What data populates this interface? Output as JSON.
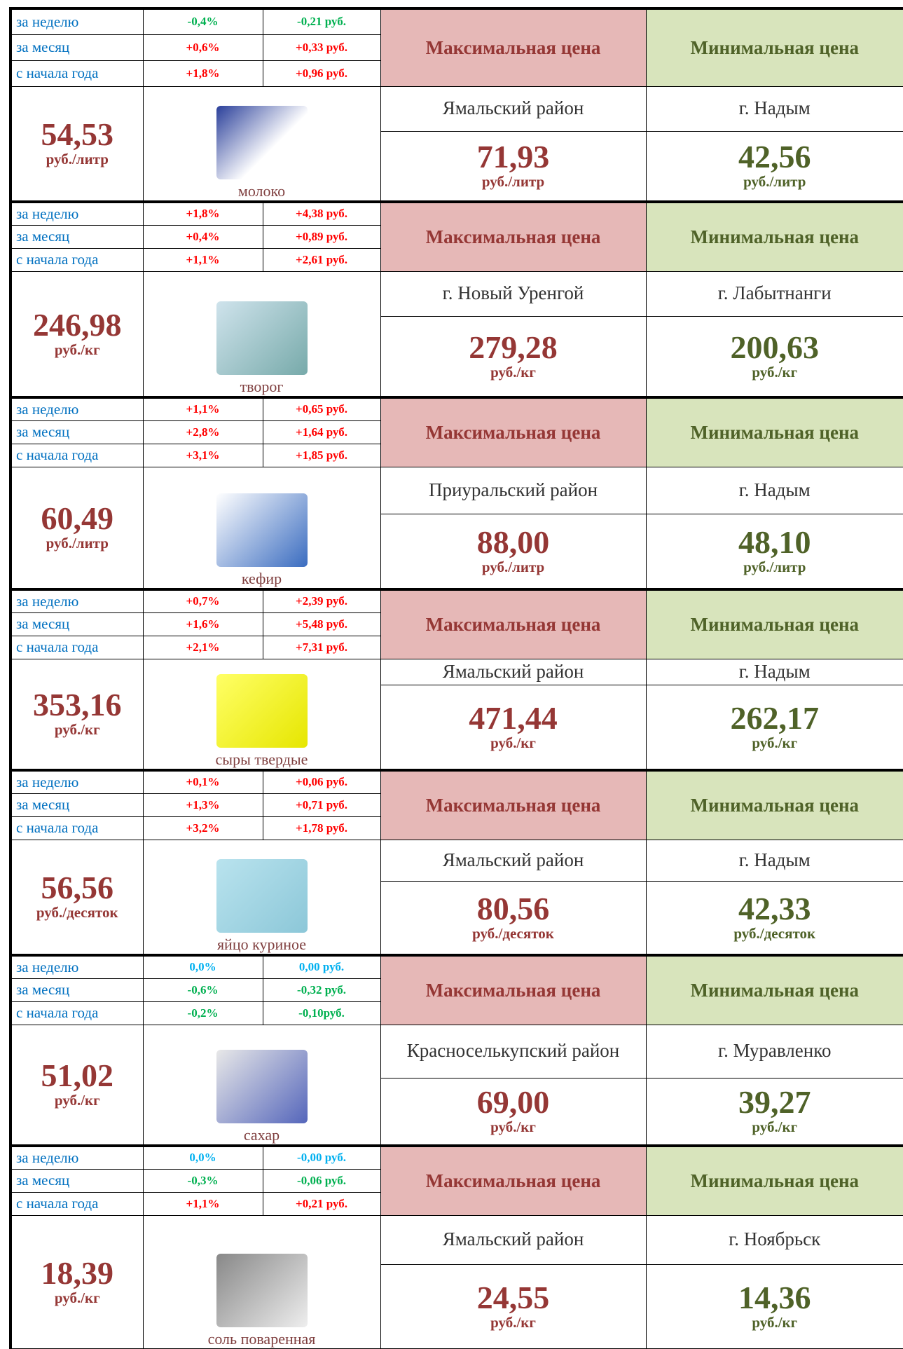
{
  "blocks": [
    {
      "changes": [
        {
          "label": "за неделю",
          "percent": "-0,4%",
          "rub": "-0,21 руб."
        },
        {
          "label": "за месяц",
          "percent": "+0,6%",
          "rub": "+0,33 руб."
        },
        {
          "label": "с начала года",
          "percent": "+1,8%",
          "rub": "+0,96 руб."
        }
      ],
      "price": "54,53",
      "unit": "руб./литр",
      "product": "молоко",
      "max": {
        "header": "Максимальная цена",
        "region": "Ямальский район",
        "price": "71,93",
        "unit": "руб./литр"
      },
      "min": {
        "header": "Минимальная цена",
        "region": "г. Надым",
        "price": "42,56",
        "unit": "руб./литр"
      }
    },
    {
      "changes": [
        {
          "label": "за неделю",
          "percent": "+1,8%",
          "rub": "+4,38 руб."
        },
        {
          "label": "за месяц",
          "percent": "+0,4%",
          "rub": "+0,89 руб."
        },
        {
          "label": "с начала года",
          "percent": "+1,1%",
          "rub": "+2,61 руб."
        }
      ],
      "price": "246,98",
      "unit": "руб./кг",
      "product": "творог",
      "max": {
        "header": "Максимальная цена",
        "region": "г. Новый Уренгой",
        "price": "279,28",
        "unit": "руб./кг"
      },
      "min": {
        "header": "Минимальная цена",
        "region": "г. Лабытнанги",
        "price": "200,63",
        "unit": "руб./кг"
      }
    },
    {
      "changes": [
        {
          "label": "за неделю",
          "percent": "+1,1%",
          "rub": "+0,65 руб."
        },
        {
          "label": "за месяц",
          "percent": "+2,8%",
          "rub": "+1,64 руб."
        },
        {
          "label": "с начала года",
          "percent": "+3,1%",
          "rub": "+1,85 руб."
        }
      ],
      "price": "60,49",
      "unit": "руб./литр",
      "product": "кефир",
      "max": {
        "header": "Максимальная цена",
        "region": "Приуральский район",
        "price": "88,00",
        "unit": "руб./литр"
      },
      "min": {
        "header": "Минимальная цена",
        "region": "г. Надым",
        "price": "48,10",
        "unit": "руб./литр"
      }
    },
    {
      "changes": [
        {
          "label": "за неделю",
          "percent": "+0,7%",
          "rub": "+2,39 руб."
        },
        {
          "label": "за месяц",
          "percent": "+1,6%",
          "rub": "+5,48 руб."
        },
        {
          "label": "с начала года",
          "percent": "+2,1%",
          "rub": "+7,31 руб."
        }
      ],
      "price": "353,16",
      "unit": "руб./кг",
      "product": "сыры твердые",
      "max": {
        "header": "Максимальная цена",
        "region": "Ямальский район",
        "price": "471,44",
        "unit": "руб./кг"
      },
      "min": {
        "header": "Минимальная цена",
        "region": "г. Надым",
        "price": "262,17",
        "unit": "руб./кг"
      }
    },
    {
      "changes": [
        {
          "label": "за неделю",
          "percent": "+0,1%",
          "rub": "+0,06 руб."
        },
        {
          "label": "за месяц",
          "percent": "+1,3%",
          "rub": "+0,71 руб."
        },
        {
          "label": "с начала года",
          "percent": "+3,2%",
          "rub": "+1,78 руб."
        }
      ],
      "price": "56,56",
      "unit": "руб./десяток",
      "product": "яйцо куриное",
      "max": {
        "header": "Максимальная цена",
        "region": "Ямальский район",
        "price": "80,56",
        "unit": "руб./десяток"
      },
      "min": {
        "header": "Минимальная цена",
        "region": "г. Надым",
        "price": "42,33",
        "unit": "руб./десяток"
      }
    },
    {
      "changes": [
        {
          "label": "за неделю",
          "percent": "0,0%",
          "rub": "0,00 руб."
        },
        {
          "label": "за месяц",
          "percent": "-0,6%",
          "rub": "-0,32 руб."
        },
        {
          "label": "с начала года",
          "percent": "-0,2%",
          "rub": "-0,10руб."
        }
      ],
      "price": "51,02",
      "unit": "руб./кг",
      "product": "сахар",
      "max": {
        "header": "Максимальная цена",
        "region": "Красноселькупский район",
        "price": "69,00",
        "unit": "руб./кг"
      },
      "min": {
        "header": "Минимальная цена",
        "region": "г. Муравленко",
        "price": "39,27",
        "unit": "руб./кг"
      }
    },
    {
      "changes": [
        {
          "label": "за неделю",
          "percent": "0,0%",
          "rub": "-0,00 руб."
        },
        {
          "label": "за месяц",
          "percent": "-0,3%",
          "rub": "-0,06 руб."
        },
        {
          "label": "с начала года",
          "percent": "+1,1%",
          "rub": "+0,21 руб."
        }
      ],
      "price": "18,39",
      "unit": "руб./кг",
      "product": "соль поваренная",
      "max": {
        "header": "Максимальная цена",
        "region": "Ямальский район",
        "price": "24,55",
        "unit": "руб./кг"
      },
      "min": {
        "header": "Минимальная цена",
        "region": "г. Ноябрьск",
        "price": "14,36",
        "unit": "руб./кг"
      }
    }
  ]
}
